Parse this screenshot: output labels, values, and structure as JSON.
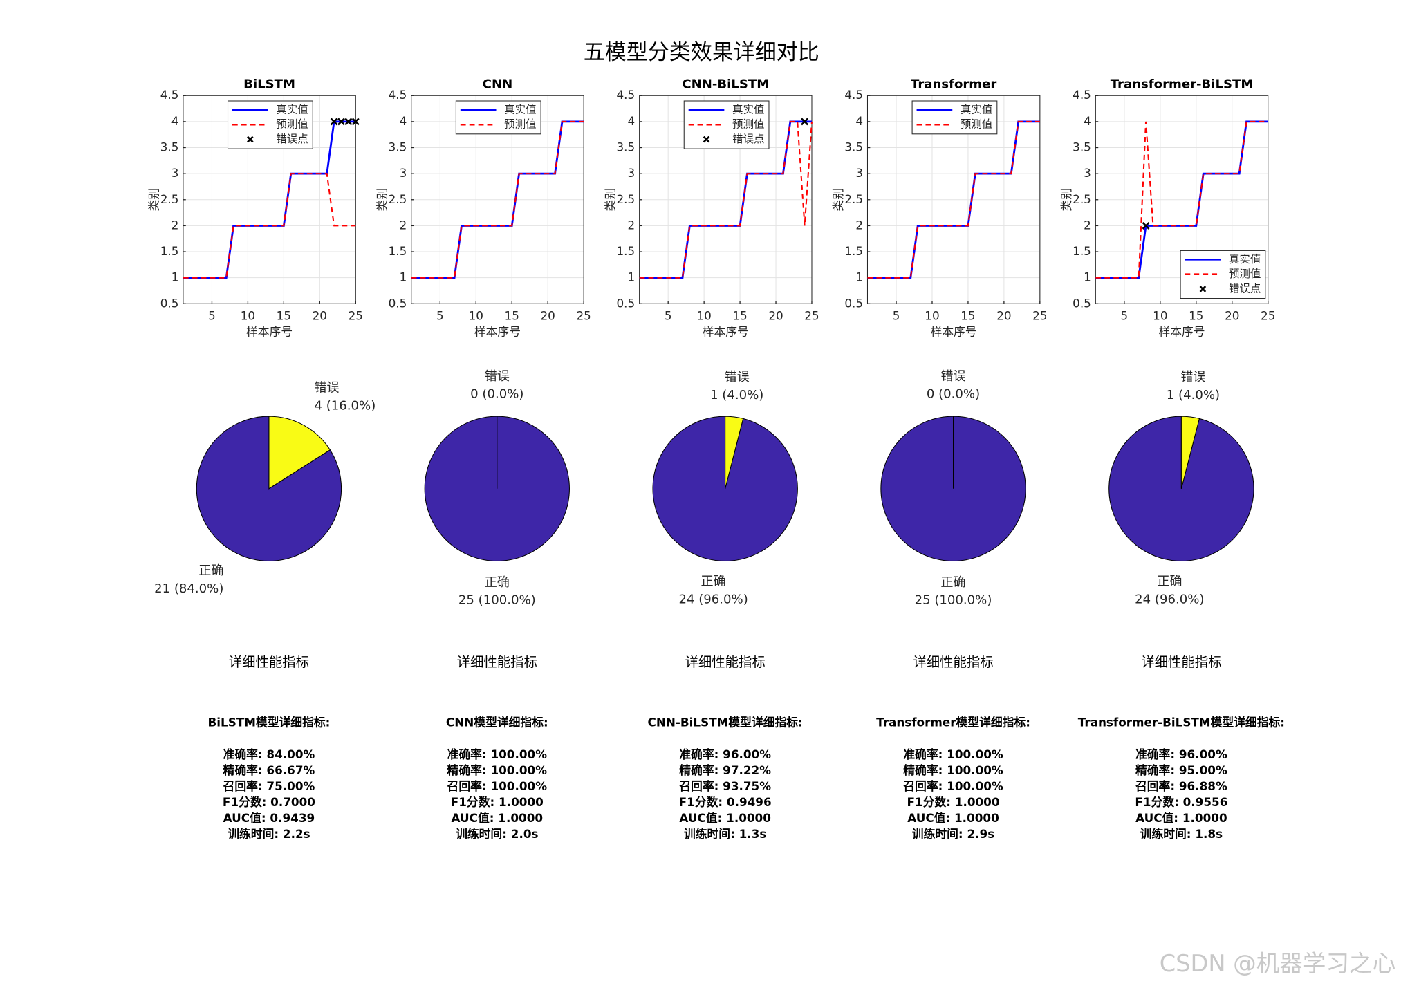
{
  "title": "五模型分类效果详细对比",
  "chart_data": [
    {
      "type": "line",
      "title": "BiLSTM",
      "xlabel": "样本序号",
      "ylabel": "类别",
      "grid": true,
      "legend": "upper right",
      "x": [
        1,
        2,
        3,
        4,
        5,
        6,
        7,
        8,
        9,
        10,
        11,
        12,
        13,
        14,
        15,
        16,
        17,
        18,
        19,
        20,
        21,
        22,
        23,
        24,
        25
      ],
      "xlim": [
        1,
        25
      ],
      "xticks": [
        5,
        10,
        15,
        20,
        25
      ],
      "ylim": [
        0.5,
        4.5
      ],
      "yticks": [
        0.5,
        1,
        1.5,
        2,
        2.5,
        3,
        3.5,
        4,
        4.5
      ],
      "series": [
        {
          "name": "真实值",
          "color": "#0000ff",
          "line_style": "solid",
          "values": [
            1,
            1,
            1,
            1,
            1,
            1,
            1,
            2,
            2,
            2,
            2,
            2,
            2,
            2,
            2,
            3,
            3,
            3,
            3,
            3,
            3,
            4,
            4,
            4,
            4
          ]
        },
        {
          "name": "预测值",
          "color": "#ff0000",
          "line_style": "dashed",
          "values": [
            1,
            1,
            1,
            1,
            1,
            1,
            1,
            2,
            2,
            2,
            2,
            2,
            2,
            2,
            2,
            3,
            3,
            3,
            3,
            3,
            3,
            2,
            2,
            2,
            2
          ]
        },
        {
          "name": "错误点",
          "type": "scatter",
          "marker": "x",
          "color": "#000000",
          "x": [
            22,
            23,
            24,
            25
          ],
          "values": [
            4,
            4,
            4,
            4
          ]
        }
      ]
    },
    {
      "type": "line",
      "title": "CNN",
      "xlabel": "样本序号",
      "ylabel": "类别",
      "grid": true,
      "legend": "upper right",
      "x": [
        1,
        2,
        3,
        4,
        5,
        6,
        7,
        8,
        9,
        10,
        11,
        12,
        13,
        14,
        15,
        16,
        17,
        18,
        19,
        20,
        21,
        22,
        23,
        24,
        25
      ],
      "xlim": [
        1,
        25
      ],
      "xticks": [
        5,
        10,
        15,
        20,
        25
      ],
      "ylim": [
        0.5,
        4.5
      ],
      "yticks": [
        0.5,
        1,
        1.5,
        2,
        2.5,
        3,
        3.5,
        4,
        4.5
      ],
      "series": [
        {
          "name": "真实值",
          "color": "#0000ff",
          "line_style": "solid",
          "values": [
            1,
            1,
            1,
            1,
            1,
            1,
            1,
            2,
            2,
            2,
            2,
            2,
            2,
            2,
            2,
            3,
            3,
            3,
            3,
            3,
            3,
            4,
            4,
            4,
            4
          ]
        },
        {
          "name": "预测值",
          "color": "#ff0000",
          "line_style": "dashed",
          "values": [
            1,
            1,
            1,
            1,
            1,
            1,
            1,
            2,
            2,
            2,
            2,
            2,
            2,
            2,
            2,
            3,
            3,
            3,
            3,
            3,
            3,
            4,
            4,
            4,
            4
          ]
        }
      ]
    },
    {
      "type": "line",
      "title": "CNN-BiLSTM",
      "xlabel": "样本序号",
      "ylabel": "类别",
      "grid": true,
      "legend": "upper right",
      "x": [
        1,
        2,
        3,
        4,
        5,
        6,
        7,
        8,
        9,
        10,
        11,
        12,
        13,
        14,
        15,
        16,
        17,
        18,
        19,
        20,
        21,
        22,
        23,
        24,
        25
      ],
      "xlim": [
        1,
        25
      ],
      "xticks": [
        5,
        10,
        15,
        20,
        25
      ],
      "ylim": [
        0.5,
        4.5
      ],
      "yticks": [
        0.5,
        1,
        1.5,
        2,
        2.5,
        3,
        3.5,
        4,
        4.5
      ],
      "series": [
        {
          "name": "真实值",
          "color": "#0000ff",
          "line_style": "solid",
          "values": [
            1,
            1,
            1,
            1,
            1,
            1,
            1,
            2,
            2,
            2,
            2,
            2,
            2,
            2,
            2,
            3,
            3,
            3,
            3,
            3,
            3,
            4,
            4,
            4,
            4
          ]
        },
        {
          "name": "预测值",
          "color": "#ff0000",
          "line_style": "dashed",
          "values": [
            1,
            1,
            1,
            1,
            1,
            1,
            1,
            2,
            2,
            2,
            2,
            2,
            2,
            2,
            2,
            3,
            3,
            3,
            3,
            3,
            3,
            4,
            4,
            2,
            4
          ]
        },
        {
          "name": "错误点",
          "type": "scatter",
          "marker": "x",
          "color": "#000000",
          "x": [
            24
          ],
          "values": [
            4
          ]
        }
      ]
    },
    {
      "type": "line",
      "title": "Transformer",
      "xlabel": "样本序号",
      "ylabel": "类别",
      "grid": true,
      "legend": "upper right",
      "x": [
        1,
        2,
        3,
        4,
        5,
        6,
        7,
        8,
        9,
        10,
        11,
        12,
        13,
        14,
        15,
        16,
        17,
        18,
        19,
        20,
        21,
        22,
        23,
        24,
        25
      ],
      "xlim": [
        1,
        25
      ],
      "xticks": [
        5,
        10,
        15,
        20,
        25
      ],
      "ylim": [
        0.5,
        4.5
      ],
      "yticks": [
        0.5,
        1,
        1.5,
        2,
        2.5,
        3,
        3.5,
        4,
        4.5
      ],
      "series": [
        {
          "name": "真实值",
          "color": "#0000ff",
          "line_style": "solid",
          "values": [
            1,
            1,
            1,
            1,
            1,
            1,
            1,
            2,
            2,
            2,
            2,
            2,
            2,
            2,
            2,
            3,
            3,
            3,
            3,
            3,
            3,
            4,
            4,
            4,
            4
          ]
        },
        {
          "name": "预测值",
          "color": "#ff0000",
          "line_style": "dashed",
          "values": [
            1,
            1,
            1,
            1,
            1,
            1,
            1,
            2,
            2,
            2,
            2,
            2,
            2,
            2,
            2,
            3,
            3,
            3,
            3,
            3,
            3,
            4,
            4,
            4,
            4
          ]
        }
      ]
    },
    {
      "type": "line",
      "title": "Transformer-BiLSTM",
      "xlabel": "样本序号",
      "ylabel": "类别",
      "grid": true,
      "legend": "lower right",
      "x": [
        1,
        2,
        3,
        4,
        5,
        6,
        7,
        8,
        9,
        10,
        11,
        12,
        13,
        14,
        15,
        16,
        17,
        18,
        19,
        20,
        21,
        22,
        23,
        24,
        25
      ],
      "xlim": [
        1,
        25
      ],
      "xticks": [
        5,
        10,
        15,
        20,
        25
      ],
      "ylim": [
        0.5,
        4.5
      ],
      "yticks": [
        0.5,
        1,
        1.5,
        2,
        2.5,
        3,
        3.5,
        4,
        4.5
      ],
      "series": [
        {
          "name": "真实值",
          "color": "#0000ff",
          "line_style": "solid",
          "values": [
            1,
            1,
            1,
            1,
            1,
            1,
            1,
            2,
            2,
            2,
            2,
            2,
            2,
            2,
            2,
            3,
            3,
            3,
            3,
            3,
            3,
            4,
            4,
            4,
            4
          ]
        },
        {
          "name": "预测值",
          "color": "#ff0000",
          "line_style": "dashed",
          "values": [
            1,
            1,
            1,
            1,
            1,
            1,
            1,
            4,
            2,
            2,
            2,
            2,
            2,
            2,
            2,
            3,
            3,
            3,
            3,
            3,
            3,
            4,
            4,
            4,
            4
          ]
        },
        {
          "name": "错误点",
          "type": "scatter",
          "marker": "x",
          "color": "#000000",
          "x": [
            8
          ],
          "values": [
            2
          ]
        }
      ]
    },
    {
      "type": "pie",
      "categories": [
        "正确",
        "错误"
      ],
      "values": [
        21,
        4
      ],
      "value_labels": [
        "21 (84.0%)",
        "4 (16.0%)"
      ],
      "colors": [
        "#3e26a8",
        "#f9fb15"
      ]
    },
    {
      "type": "pie",
      "categories": [
        "正确",
        "错误"
      ],
      "values": [
        25,
        0
      ],
      "value_labels": [
        "25 (100.0%)",
        "0 (0.0%)"
      ],
      "colors": [
        "#3e26a8",
        "#f9fb15"
      ]
    },
    {
      "type": "pie",
      "categories": [
        "正确",
        "错误"
      ],
      "values": [
        24,
        1
      ],
      "value_labels": [
        "24 (96.0%)",
        "1 (4.0%)"
      ],
      "colors": [
        "#3e26a8",
        "#f9fb15"
      ]
    },
    {
      "type": "pie",
      "categories": [
        "正确",
        "错误"
      ],
      "values": [
        25,
        0
      ],
      "value_labels": [
        "25 (100.0%)",
        "0 (0.0%)"
      ],
      "colors": [
        "#3e26a8",
        "#f9fb15"
      ]
    },
    {
      "type": "pie",
      "categories": [
        "正确",
        "错误"
      ],
      "values": [
        24,
        1
      ],
      "value_labels": [
        "24 (96.0%)",
        "1 (4.0%)"
      ],
      "colors": [
        "#3e26a8",
        "#f9fb15"
      ]
    }
  ],
  "metrics": [
    {
      "heading": "详细性能指标",
      "title": "BiLSTM模型详细指标:",
      "lines": [
        "准确率: 84.00%",
        "精确率: 66.67%",
        "召回率: 75.00%",
        "F1分数: 0.7000",
        "AUC值: 0.9439",
        "训练时间: 2.2s"
      ]
    },
    {
      "heading": "详细性能指标",
      "title": "CNN模型详细指标:",
      "lines": [
        "准确率: 100.00%",
        "精确率: 100.00%",
        "召回率: 100.00%",
        "F1分数: 1.0000",
        "AUC值: 1.0000",
        "训练时间: 2.0s"
      ]
    },
    {
      "heading": "详细性能指标",
      "title": "CNN-BiLSTM模型详细指标:",
      "lines": [
        "准确率: 96.00%",
        "精确率: 97.22%",
        "召回率: 93.75%",
        "F1分数: 0.9496",
        "AUC值: 1.0000",
        "训练时间: 1.3s"
      ]
    },
    {
      "heading": "详细性能指标",
      "title": "Transformer模型详细指标:",
      "lines": [
        "准确率: 100.00%",
        "精确率: 100.00%",
        "召回率: 100.00%",
        "F1分数: 1.0000",
        "AUC值: 1.0000",
        "训练时间: 2.9s"
      ]
    },
    {
      "heading": "详细性能指标",
      "title": "Transformer-BiLSTM模型详细指标:",
      "lines": [
        "准确率: 96.00%",
        "精确率: 95.00%",
        "召回率: 96.88%",
        "F1分数: 0.9556",
        "AUC值: 1.0000",
        "训练时间: 1.8s"
      ]
    }
  ],
  "watermark": "CSDN @机器学习之心"
}
